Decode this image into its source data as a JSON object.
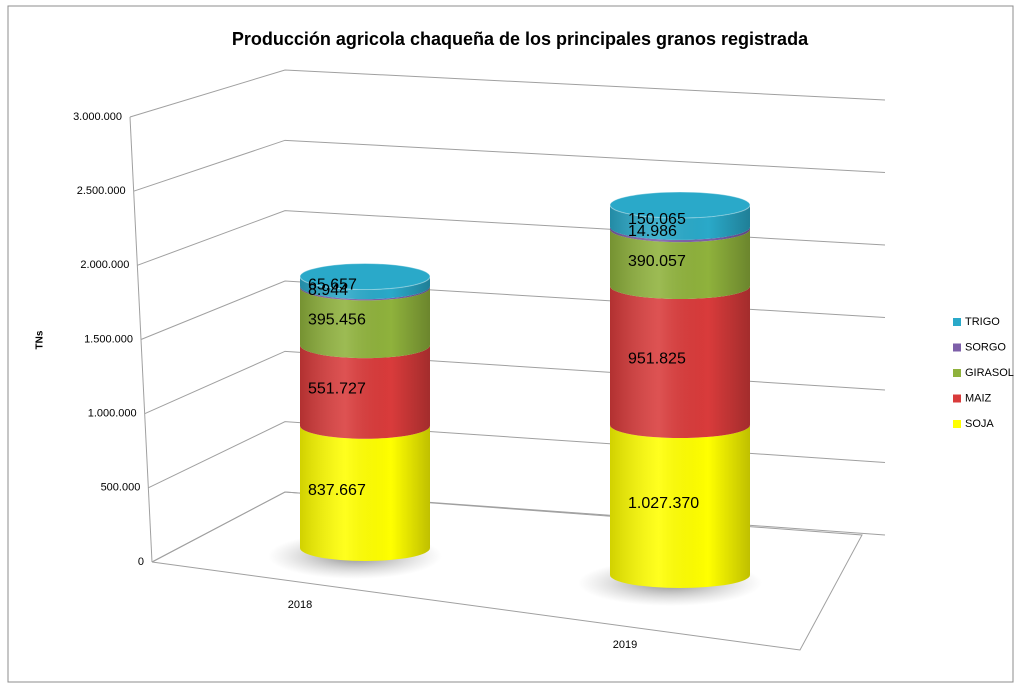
{
  "chart_data": {
    "type": "cylinder3d",
    "title": "Producción agricola chaqueña de los principales granos registrada",
    "y_label": "TNs",
    "categories": [
      "2018",
      "2019"
    ],
    "series": [
      {
        "name": "SOJA",
        "color": "#ffff00",
        "values": [
          837667,
          1027370
        ],
        "value_labels": [
          "837.667",
          "1.027.370"
        ]
      },
      {
        "name": "MAIZ",
        "color": "#d93b3b",
        "values": [
          551727,
          951825
        ],
        "value_labels": [
          "551.727",
          "951.825"
        ]
      },
      {
        "name": "GIRASOL",
        "color": "#8fb23c",
        "values": [
          395456,
          390057
        ],
        "value_labels": [
          "395.456",
          "390.057"
        ]
      },
      {
        "name": "SORGO",
        "color": "#7d5fa9",
        "values": [
          8944,
          14986
        ],
        "value_labels": [
          "8.944",
          "14.986"
        ]
      },
      {
        "name": "TRIGO",
        "color": "#2aa9c9",
        "values": [
          65657,
          150065
        ],
        "value_labels": [
          "65.657",
          "150.065"
        ]
      }
    ],
    "ylim": [
      0,
      3000000
    ],
    "yticks": [
      0,
      {
        "value": 500000,
        "label": "500.000"
      },
      {
        "value": 1000000,
        "label": "1.000.000"
      },
      {
        "value": 1500000,
        "label": "1.500.000"
      },
      {
        "value": 2000000,
        "label": "2.000.000"
      },
      {
        "value": 2500000,
        "label": "2.500.000"
      },
      {
        "value": 3000000,
        "label": "3.000.000"
      }
    ],
    "grid": true,
    "legend": "right"
  }
}
